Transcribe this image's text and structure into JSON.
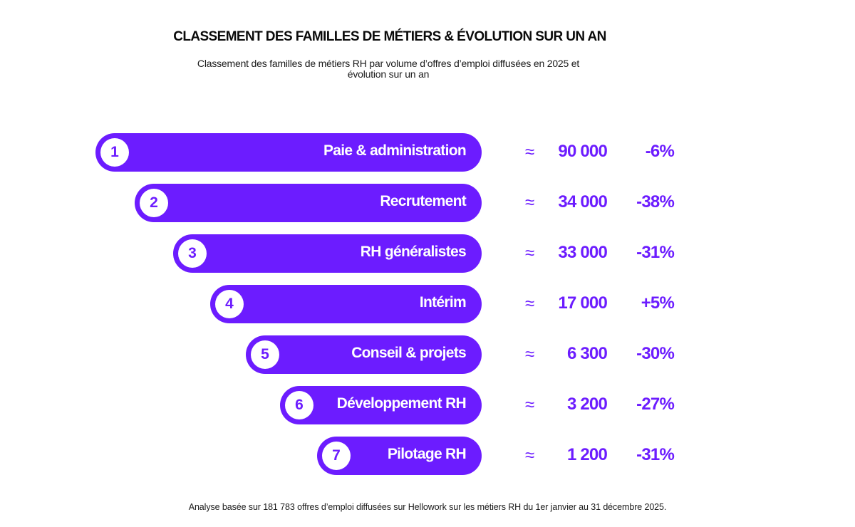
{
  "colors": {
    "accent": "#6c1cff",
    "text_dark": "#0a0a0a",
    "background": "#ffffff"
  },
  "header": {
    "title": "CLASSEMENT DES FAMILLES DE MÉTIERS & ÉVOLUTION SUR UN AN",
    "subtitle_line1": "Classement des familles de métiers RH par volume d’offres d’emploi diffusées en 2025 et",
    "subtitle_line2": "évolution sur un an"
  },
  "footnote": "Analyse basée sur 181 783 offres d’emploi diffusées sur Hellowork sur les métiers RH du 1er janvier au 31 décembre 2025.",
  "chart_data": {
    "type": "bar",
    "title": "CLASSEMENT DES FAMILLES DE MÉTIERS & ÉVOLUTION SUR UN AN",
    "subtitle": "Classement des familles de métiers RH par volume d’offres d’emploi diffusées en 2025 et évolution sur un an",
    "orientation": "horizontal-ranked",
    "approx_symbol": "≈",
    "categories": [
      "Paie & administration",
      "Recrutement",
      "RH généralistes",
      "Intérim",
      "Conseil & projets",
      "Développement RH",
      "Pilotage RH"
    ],
    "ranks": [
      "1",
      "2",
      "3",
      "4",
      "5",
      "6",
      "7"
    ],
    "values": [
      90000,
      34000,
      33000,
      17000,
      6300,
      3200,
      1200
    ],
    "value_labels": [
      "90 000",
      "34 000",
      "33 000",
      "17 000",
      "6 300",
      "3 200",
      "1 200"
    ],
    "evolution": [
      "-6%",
      "-38%",
      "-31%",
      "+5%",
      "-30%",
      "-27%",
      "-31%"
    ],
    "xlabel": "",
    "ylabel": "",
    "legend": "none",
    "grid": false
  }
}
